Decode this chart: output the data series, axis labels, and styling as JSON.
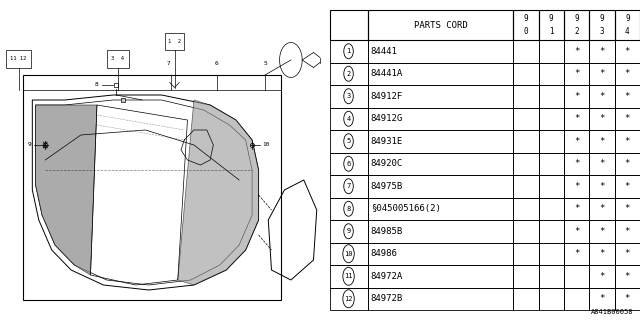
{
  "bg_color": "#ffffff",
  "table_header": "PARTS CORD",
  "columns": [
    "90",
    "91",
    "92",
    "93",
    "94"
  ],
  "rows": [
    {
      "num": "1",
      "code": "84441",
      "marks": [
        "",
        "",
        "*",
        "*",
        "*"
      ]
    },
    {
      "num": "2",
      "code": "84441A",
      "marks": [
        "",
        "",
        "*",
        "*",
        "*"
      ]
    },
    {
      "num": "3",
      "code": "84912F",
      "marks": [
        "",
        "",
        "*",
        "*",
        "*"
      ]
    },
    {
      "num": "4",
      "code": "84912G",
      "marks": [
        "",
        "",
        "*",
        "*",
        "*"
      ]
    },
    {
      "num": "5",
      "code": "84931E",
      "marks": [
        "",
        "",
        "*",
        "*",
        "*"
      ]
    },
    {
      "num": "6",
      "code": "84920C",
      "marks": [
        "",
        "",
        "*",
        "*",
        "*"
      ]
    },
    {
      "num": "7",
      "code": "84975B",
      "marks": [
        "",
        "",
        "*",
        "*",
        "*"
      ]
    },
    {
      "num": "8",
      "code": "§045005166(2)",
      "marks": [
        "",
        "",
        "*",
        "*",
        "*"
      ]
    },
    {
      "num": "9",
      "code": "84985B",
      "marks": [
        "",
        "",
        "*",
        "*",
        "*"
      ]
    },
    {
      "num": "10",
      "code": "84986",
      "marks": [
        "",
        "",
        "*",
        "*",
        "*"
      ]
    },
    {
      "num": "11",
      "code": "84972A",
      "marks": [
        "",
        "",
        "",
        "*",
        "*"
      ]
    },
    {
      "num": "12",
      "code": "84972B",
      "marks": [
        "",
        "",
        "",
        "*",
        "*"
      ]
    }
  ],
  "footnote": "A841B00058",
  "lc": "#000000",
  "table_fs": 6.5
}
